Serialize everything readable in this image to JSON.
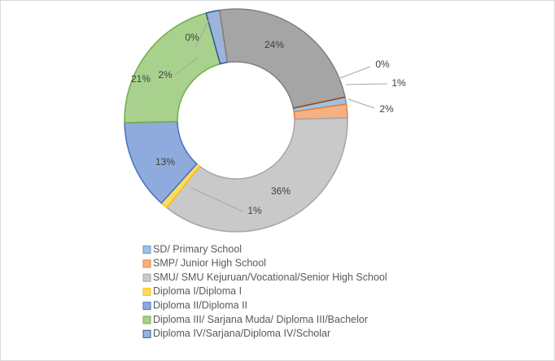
{
  "chart_data": {
    "type": "donut",
    "categories": [
      "SD/ Primary School",
      "SMP/ Junior High School",
      "SMU/ SMU Kejuruan/Vocational/Senior High School",
      "Diploma I/Diploma I",
      "Diploma II/Diploma II",
      "Diploma III/ Sarjana Muda/ Diploma III/Bachelor",
      "Diploma IV/Sarjana/Diploma IV/Scholar",
      null,
      null,
      null
    ],
    "values": [
      1,
      2,
      36,
      1,
      13,
      21,
      2,
      0,
      24,
      0
    ],
    "value_labels": [
      "1%",
      "2%",
      "36%",
      "1%",
      "13%",
      "21%",
      "2%",
      "0%",
      "24%",
      "0%"
    ],
    "colors": [
      "#9dc3e6",
      "#f4b183",
      "#c9c9c9",
      "#ffd966",
      "#8faadc",
      "#a9d18e",
      "#9db4d8",
      "#bf9000",
      "#a5a5a5",
      "#c55a11"
    ],
    "legend": "bottom"
  }
}
